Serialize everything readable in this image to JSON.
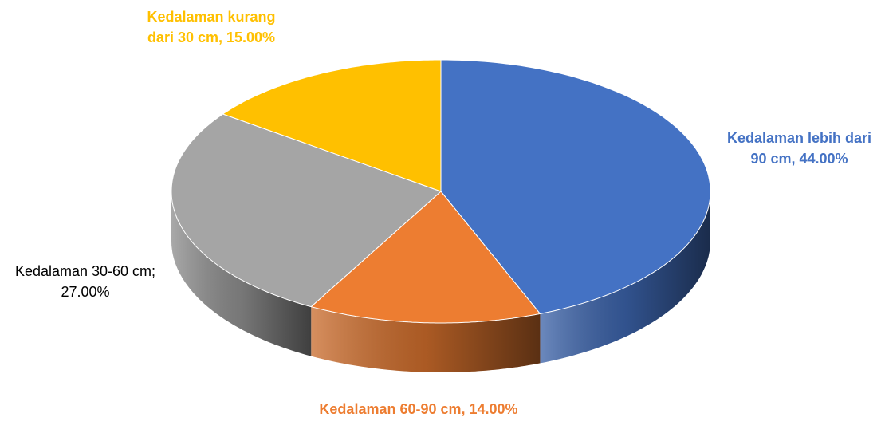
{
  "chart_data": {
    "type": "pie",
    "values": [
      44,
      14,
      27,
      15
    ],
    "value_labels": [
      "Kedalaman lebih dari 90 cm, 44.00%",
      "Kedalaman 60-90 cm, 14.00%",
      "Kedalaman 30-60 cm; 27.00%",
      "Kedalaman kurang dari 30 cm, 15.00%"
    ],
    "colors": [
      "#4472c4",
      "#ed7d31",
      "#a5a5a5",
      "#ffc000"
    ],
    "label_colors": [
      "#4472c4",
      "#ed7d31",
      "#000000",
      "#ffc000"
    ]
  }
}
